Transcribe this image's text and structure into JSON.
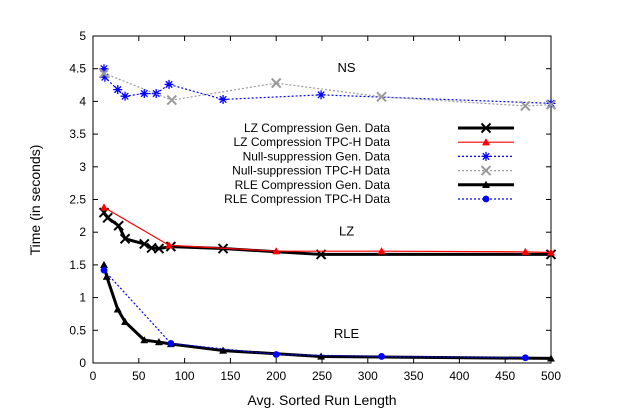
{
  "chart_data": {
    "type": "line",
    "title": "",
    "xlabel": "Avg. Sorted Run Length",
    "ylabel": "Time (in seconds)",
    "xlim": [
      0,
      500
    ],
    "ylim": [
      0,
      5
    ],
    "xticks": [
      0,
      50,
      100,
      150,
      200,
      250,
      300,
      350,
      400,
      450,
      500
    ],
    "yticks": [
      0,
      0.5,
      1,
      1.5,
      2,
      2.5,
      3,
      3.5,
      4,
      4.5,
      5
    ],
    "grid": false,
    "legend_position": "upper-middle",
    "annotations": [
      {
        "text": "NS",
        "x": 255,
        "y": 4.45
      },
      {
        "text": "LZ",
        "x": 255,
        "y": 1.95
      },
      {
        "text": "RLE",
        "x": 255,
        "y": 0.38
      }
    ],
    "series": [
      {
        "name": "LZ Compression Gen. Data",
        "color": "#000000",
        "marker": "x",
        "dash": "solid",
        "width": "thick",
        "points": [
          [
            12,
            2.3
          ],
          [
            16,
            2.22
          ],
          [
            28,
            2.1
          ],
          [
            35,
            1.9
          ],
          [
            56,
            1.82
          ],
          [
            64,
            1.76
          ],
          [
            72,
            1.75
          ],
          [
            85,
            1.78
          ],
          [
            142,
            1.75
          ],
          [
            249,
            1.66
          ],
          [
            500,
            1.66
          ]
        ]
      },
      {
        "name": "LZ Compression TPC-H Data",
        "color": "#ff0000",
        "marker": "triangle",
        "dash": "solid",
        "width": "thin",
        "points": [
          [
            12,
            2.38
          ],
          [
            83,
            1.8
          ],
          [
            200,
            1.71
          ],
          [
            315,
            1.71
          ],
          [
            472,
            1.7
          ],
          [
            500,
            1.69
          ]
        ]
      },
      {
        "name": "Null-suppression Gen. Data",
        "color": "#0000ff",
        "marker": "star",
        "dash": "dotted",
        "width": "thin",
        "points": [
          [
            12,
            4.5
          ],
          [
            13,
            4.37
          ],
          [
            27,
            4.18
          ],
          [
            35,
            4.08
          ],
          [
            56,
            4.12
          ],
          [
            69,
            4.12
          ],
          [
            83,
            4.26
          ],
          [
            142,
            4.03
          ],
          [
            249,
            4.1
          ],
          [
            500,
            3.97
          ]
        ]
      },
      {
        "name": "Null-suppression TPC-H Data",
        "color": "#999999",
        "marker": "x",
        "dash": "dotted",
        "width": "thin",
        "points": [
          [
            12,
            4.43
          ],
          [
            86,
            4.02
          ],
          [
            200,
            4.28
          ],
          [
            315,
            4.07
          ],
          [
            472,
            3.93
          ],
          [
            500,
            3.95
          ]
        ]
      },
      {
        "name": "RLE Compression Gen. Data",
        "color": "#000000",
        "marker": "triangle",
        "dash": "solid",
        "width": "thick",
        "points": [
          [
            12,
            1.5
          ],
          [
            15,
            1.32
          ],
          [
            27,
            0.82
          ],
          [
            35,
            0.63
          ],
          [
            56,
            0.35
          ],
          [
            72,
            0.32
          ],
          [
            85,
            0.29
          ],
          [
            142,
            0.19
          ],
          [
            249,
            0.1
          ],
          [
            500,
            0.07
          ]
        ]
      },
      {
        "name": "RLE Compression TPC-H Data",
        "color": "#0000ff",
        "marker": "circle",
        "dash": "dotted",
        "width": "thin",
        "points": [
          [
            12,
            1.42
          ],
          [
            85,
            0.3
          ],
          [
            200,
            0.13
          ],
          [
            315,
            0.1
          ],
          [
            472,
            0.08
          ]
        ]
      }
    ]
  }
}
